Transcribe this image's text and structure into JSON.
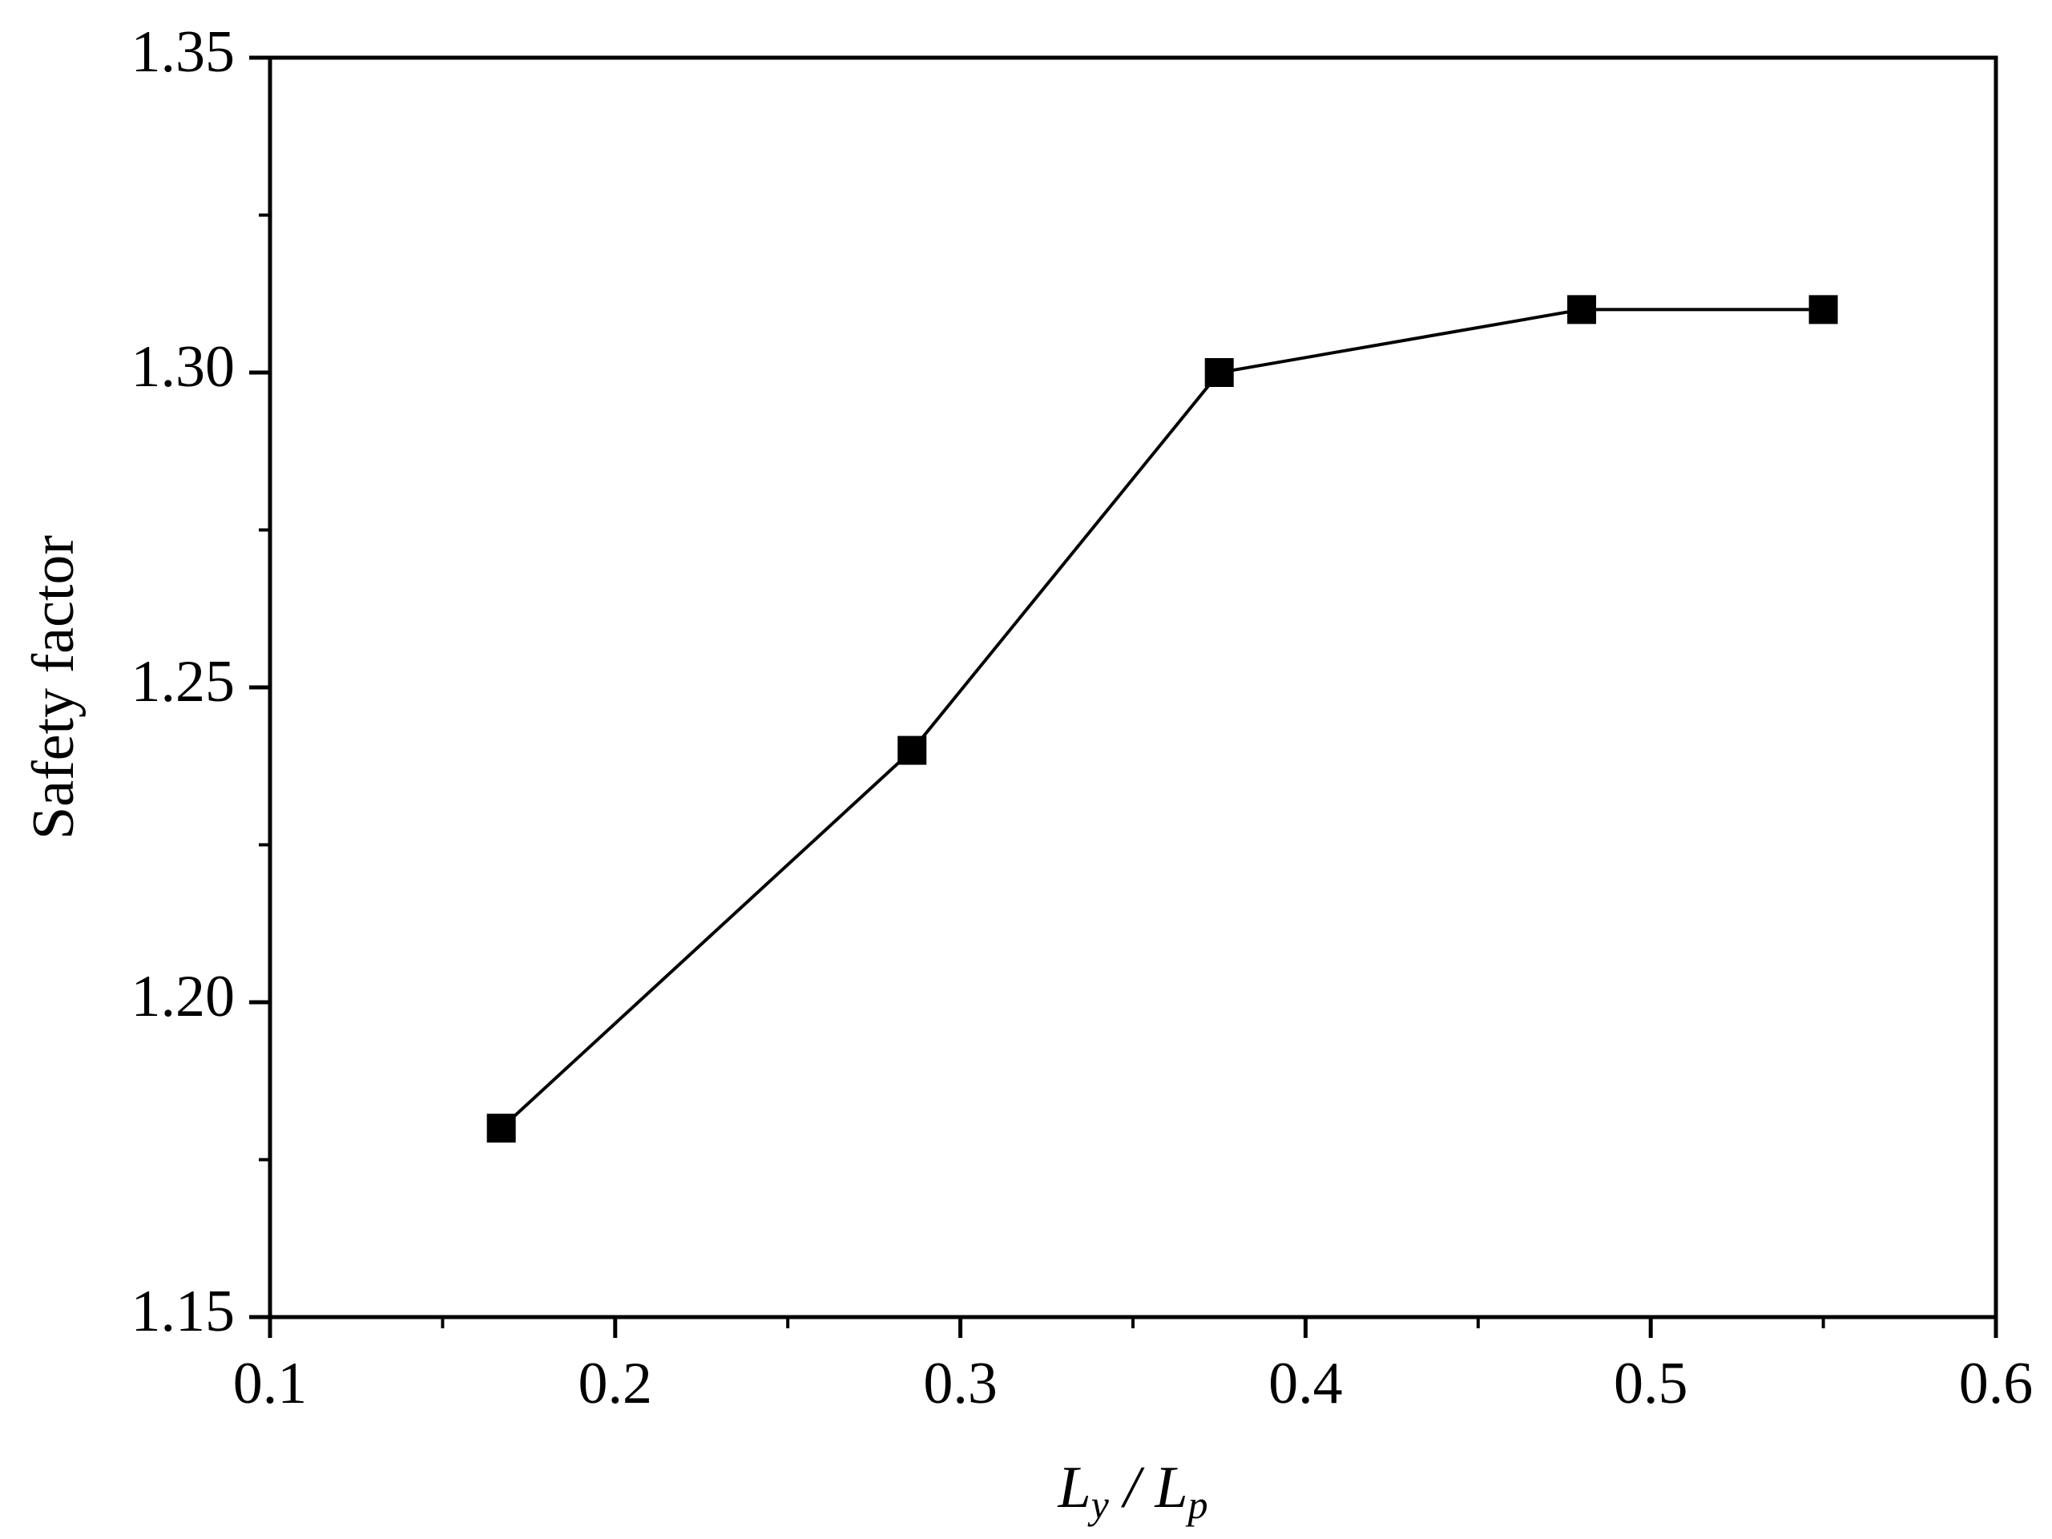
{
  "chart_data": {
    "type": "line",
    "xlabel": [
      "L",
      "y",
      " / L",
      "p"
    ],
    "ylabel": "Safety factor",
    "x": [
      0.167,
      0.286,
      0.375,
      0.48,
      0.55
    ],
    "series": [
      {
        "color": "#000000",
        "values": [
          1.18,
          1.24,
          1.3,
          1.31,
          1.31
        ]
      }
    ],
    "xlim": [
      0.1,
      0.6
    ],
    "xticks": [
      0.1,
      0.2,
      0.3,
      0.4,
      0.5,
      0.6
    ],
    "ylim": [
      1.15,
      1.35
    ],
    "yticks": [
      1.15,
      {
        "value": 1.2,
        "label": "1.20"
      },
      1.25,
      {
        "value": 1.3,
        "label": "1.30"
      },
      1.35
    ],
    "marker": "square",
    "grid": false
  }
}
